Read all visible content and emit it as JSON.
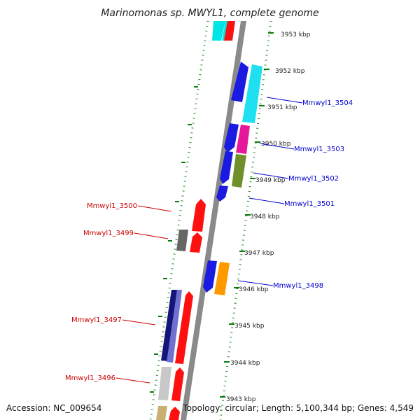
{
  "title": "Marinomonas sp. MWYL1, complete genome",
  "footer": {
    "accession": "Accession: NC_009654",
    "topology": "Topology: circular; Length: 5,100,344 bp; Genes: 4,549"
  },
  "scale": {
    "unit": "kbp",
    "ticks": [
      "3953 kbp",
      "3952 kbp",
      "3951 kbp",
      "3950 kbp",
      "3949 kbp",
      "3948 kbp",
      "3947 kbp",
      "3946 kbp",
      "3945 kbp",
      "3944 kbp",
      "3943 kbp"
    ]
  },
  "colors": {
    "forward_label": "#0000cc",
    "reverse_label": "#cc0000",
    "backbone": "#8a8a8a",
    "ring": "#228822",
    "ticks": "#0a7a0a"
  },
  "gene_labels": [
    {
      "text": "Mmwyl1_3504",
      "strand": "forward"
    },
    {
      "text": "Mmwyl1_3503",
      "strand": "forward"
    },
    {
      "text": "Mmwyl1_3502",
      "strand": "forward"
    },
    {
      "text": "Mmwyl1_3501",
      "strand": "forward"
    },
    {
      "text": "Mmwyl1_3500",
      "strand": "reverse"
    },
    {
      "text": "Mmwyl1_3499",
      "strand": "reverse"
    },
    {
      "text": "Mmwyl1_3498",
      "strand": "forward"
    },
    {
      "text": "Mmwyl1_3497",
      "strand": "reverse"
    },
    {
      "text": "Mmwyl1_3496",
      "strand": "reverse"
    }
  ]
}
